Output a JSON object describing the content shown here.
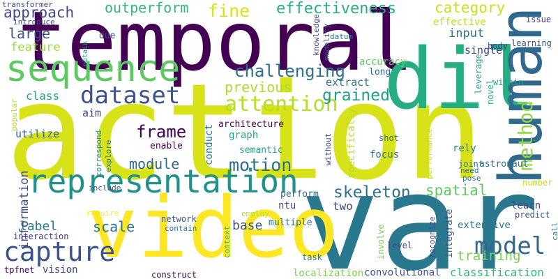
{
  "words": [
    {
      "text": "action",
      "color": "#d8e219",
      "vertical": false
    },
    {
      "text": "var",
      "color": "#2a788e",
      "vertical": false
    },
    {
      "text": "temporal",
      "color": "#440154",
      "vertical": false
    },
    {
      "text": "video",
      "color": "#fde725",
      "vertical": false
    },
    {
      "text": "dil",
      "color": "#26ad81",
      "vertical": false
    },
    {
      "text": "human",
      "color": "#31688e",
      "vertical": true
    },
    {
      "text": "sequence",
      "color": "#5ec962",
      "vertical": false
    },
    {
      "text": "representation",
      "color": "#21918c",
      "vertical": false
    },
    {
      "text": "dataset",
      "color": "#3b528b",
      "vertical": false
    },
    {
      "text": "capture",
      "color": "#3b528b",
      "vertical": false
    },
    {
      "text": "attention",
      "color": "#b5de2b",
      "vertical": false
    },
    {
      "text": "challenging",
      "color": "#2c728e",
      "vertical": false
    },
    {
      "text": "model",
      "color": "#31688e",
      "vertical": false
    },
    {
      "text": "frame",
      "color": "#440154",
      "vertical": false
    },
    {
      "text": "skeleton",
      "color": "#2c728e",
      "vertical": false
    },
    {
      "text": "motion",
      "color": "#2c728e",
      "vertical": false
    },
    {
      "text": "method",
      "color": "#8fd744",
      "vertical": true
    },
    {
      "text": "effectiveness",
      "color": "#28ae80",
      "vertical": false
    },
    {
      "text": "approach",
      "color": "#3e4989",
      "vertical": false
    },
    {
      "text": "outperform",
      "color": "#35b779",
      "vertical": false
    },
    {
      "text": "fine",
      "color": "#d8e219",
      "vertical": false
    },
    {
      "text": "category",
      "color": "#c8e020",
      "vertical": false
    },
    {
      "text": "grained",
      "color": "#1f9e89",
      "vertical": false
    },
    {
      "text": "previous",
      "color": "#addc30",
      "vertical": false
    },
    {
      "text": "training",
      "color": "#7ad151",
      "vertical": false
    },
    {
      "text": "classification",
      "color": "#35b779",
      "vertical": false
    },
    {
      "text": "extensive",
      "color": "#2a788e",
      "vertical": false
    },
    {
      "text": "spatial",
      "color": "#5ec962",
      "vertical": false
    },
    {
      "text": "base",
      "color": "#3b528b",
      "vertical": false
    },
    {
      "text": "scale",
      "color": "#2c728e",
      "vertical": false
    },
    {
      "text": "module",
      "color": "#31688e",
      "vertical": false
    },
    {
      "text": "label",
      "color": "#2a788e",
      "vertical": false
    },
    {
      "text": "information",
      "color": "#3e4989",
      "vertical": true
    },
    {
      "text": "large",
      "color": "#3b528b",
      "vertical": false
    },
    {
      "text": "feature",
      "color": "#a0da39",
      "vertical": false
    },
    {
      "text": "class",
      "color": "#20a486",
      "vertical": false
    },
    {
      "text": "input",
      "color": "#2c728e",
      "vertical": false
    },
    {
      "text": "single",
      "color": "#3e4989",
      "vertical": false
    },
    {
      "text": "effective",
      "color": "#bddf26",
      "vertical": false
    },
    {
      "text": "issue",
      "color": "#443983",
      "vertical": false
    },
    {
      "text": "learning",
      "color": "#3b528b",
      "vertical": false
    },
    {
      "text": "body",
      "color": "#3e4989",
      "vertical": false
    },
    {
      "text": "leverage",
      "color": "#22a884",
      "vertical": true
    },
    {
      "text": "within",
      "color": "#20a486",
      "vertical": false
    },
    {
      "text": "novel",
      "color": "#2ab07f",
      "vertical": true
    },
    {
      "text": "accuracy",
      "color": "#5ec962",
      "vertical": false
    },
    {
      "text": "long",
      "color": "#31688e",
      "vertical": false
    },
    {
      "text": "extract",
      "color": "#2c728e",
      "vertical": false
    },
    {
      "text": "transformer",
      "color": "#3e4989",
      "vertical": false
    },
    {
      "text": "introduce",
      "color": "#3e4989",
      "vertical": false
    },
    {
      "text": "obtain",
      "color": "#21918c",
      "vertical": true
    },
    {
      "text": "due",
      "color": "#3e4989",
      "vertical": false
    },
    {
      "text": "datum",
      "color": "#2c728e",
      "vertical": false
    },
    {
      "text": "knowledge",
      "color": "#3e4989",
      "vertical": true
    },
    {
      "text": "modality",
      "color": "#3b528b",
      "vertical": true
    },
    {
      "text": "aim",
      "color": "#3e4989",
      "vertical": false
    },
    {
      "text": "architecture",
      "color": "#440154",
      "vertical": false
    },
    {
      "text": "graph",
      "color": "#22a884",
      "vertical": false
    },
    {
      "text": "conduct",
      "color": "#2a788e",
      "vertical": true
    },
    {
      "text": "enable",
      "color": "#440154",
      "vertical": false
    },
    {
      "text": "semantic",
      "color": "#20a486",
      "vertical": false
    },
    {
      "text": "utilize",
      "color": "#31688e",
      "vertical": false
    },
    {
      "text": "popular",
      "color": "#addc30",
      "vertical": true
    },
    {
      "text": "correspond",
      "color": "#21918c",
      "vertical": true
    },
    {
      "text": "explore",
      "color": "#2a788e",
      "vertical": true
    },
    {
      "text": "without",
      "color": "#3e4989",
      "vertical": true
    },
    {
      "text": "specifically",
      "color": "#b5de2b",
      "vertical": true
    },
    {
      "text": "focus",
      "color": "#2c728e",
      "vertical": false
    },
    {
      "text": "shot",
      "color": "#2c728e",
      "vertical": false
    },
    {
      "text": "rely",
      "color": "#2a788e",
      "vertical": false
    },
    {
      "text": "performance",
      "color": "#bddf26",
      "vertical": true
    },
    {
      "text": "joint",
      "color": "#2c728e",
      "vertical": false
    },
    {
      "text": "need",
      "color": "#2c728e",
      "vertical": false
    },
    {
      "text": "astronaut",
      "color": "#2c728e",
      "vertical": false
    },
    {
      "text": "pose",
      "color": "#2c728e",
      "vertical": false
    },
    {
      "text": "number",
      "color": "#c2df23",
      "vertical": false
    },
    {
      "text": "include",
      "color": "#3b528b",
      "vertical": false
    },
    {
      "text": "perform",
      "color": "#31688e",
      "vertical": false
    },
    {
      "text": "ntu",
      "color": "#3e4989",
      "vertical": false
    },
    {
      "text": "two",
      "color": "#3e4989",
      "vertical": false
    },
    {
      "text": "learn",
      "color": "#3e4989",
      "vertical": false
    },
    {
      "text": "predict",
      "color": "#3b528b",
      "vertical": false
    },
    {
      "text": "require",
      "color": "#fde725",
      "vertical": false
    },
    {
      "text": "employ",
      "color": "#b5de2b",
      "vertical": false
    },
    {
      "text": "network",
      "color": "#3b528b",
      "vertical": false
    },
    {
      "text": "contain",
      "color": "#2c728e",
      "vertical": false
    },
    {
      "text": "multiple",
      "color": "#2c728e",
      "vertical": false
    },
    {
      "text": "interaction",
      "color": "#443983",
      "vertical": false
    },
    {
      "text": "context",
      "color": "#35b779",
      "vertical": true
    },
    {
      "text": "involve",
      "color": "#7ad151",
      "vertical": true
    },
    {
      "text": "integrate",
      "color": "#3b528b",
      "vertical": true
    },
    {
      "text": "recognize",
      "color": "#3e4989",
      "vertical": true
    },
    {
      "text": "level",
      "color": "#3e4989",
      "vertical": false
    },
    {
      "text": "call",
      "color": "#2a788e",
      "vertical": true
    },
    {
      "text": "task",
      "color": "#2c728e",
      "vertical": false
    },
    {
      "text": "localization",
      "color": "#7ad151",
      "vertical": false
    },
    {
      "text": "convolutional",
      "color": "#3b528b",
      "vertical": false
    },
    {
      "text": "tpfnet",
      "color": "#440154",
      "vertical": false
    },
    {
      "text": "vision",
      "color": "#3e4989",
      "vertical": false
    },
    {
      "text": "construct",
      "color": "#440154",
      "vertical": false
    }
  ]
}
